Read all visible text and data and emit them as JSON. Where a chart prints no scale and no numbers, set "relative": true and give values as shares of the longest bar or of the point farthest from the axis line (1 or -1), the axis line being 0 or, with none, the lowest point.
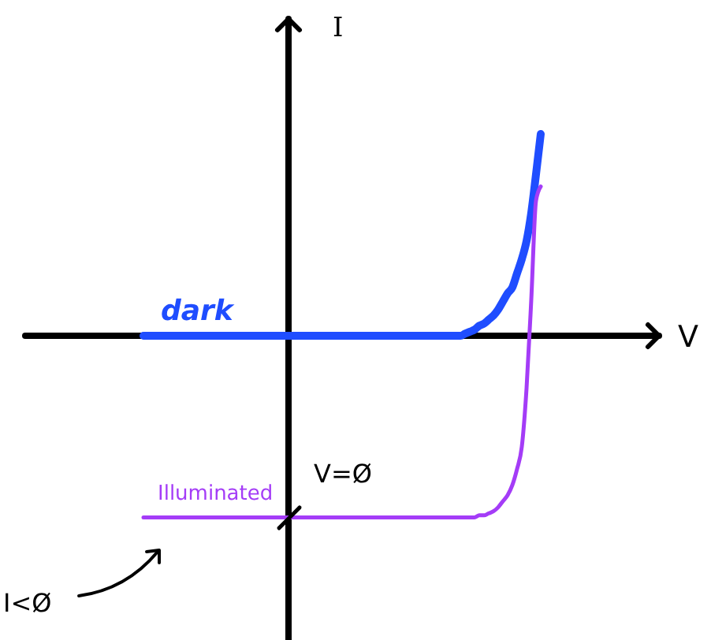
{
  "chart_data": {
    "type": "line",
    "relative": true,
    "xlabel": "V",
    "ylabel": "I",
    "line_style": "solid",
    "categories": [
      null,
      null,
      null,
      null,
      null,
      null,
      null,
      null,
      null,
      null,
      null,
      null,
      null,
      null,
      null,
      null,
      null,
      null,
      null,
      null,
      null,
      null,
      null,
      null,
      null,
      null,
      null,
      null,
      null,
      null,
      null,
      null,
      null,
      null,
      null,
      null,
      null,
      null,
      null,
      null,
      null,
      null,
      null,
      null,
      null,
      null,
      null,
      null,
      null,
      null,
      null,
      null,
      null,
      null,
      null,
      null,
      null,
      null,
      null,
      null,
      null,
      null,
      null,
      null,
      null,
      null,
      null,
      null,
      null,
      null,
      null,
      null,
      null,
      null,
      null,
      null,
      null,
      null,
      null,
      null,
      null,
      null,
      null,
      null,
      null
    ],
    "series": [
      {
        "name": "dark",
        "color": "#1f4dff",
        "values": [
          0,
          0,
          0,
          0,
          0,
          0,
          0,
          0,
          0,
          0,
          0,
          0,
          0,
          0,
          0,
          0,
          0,
          0,
          0,
          0,
          0,
          0,
          0,
          0,
          0,
          0,
          0,
          0,
          0,
          0,
          0,
          0,
          0,
          0,
          0,
          0,
          0,
          0,
          0,
          0,
          0,
          0,
          0,
          0,
          0,
          0,
          0,
          0,
          0,
          0,
          0,
          0,
          0,
          0,
          0,
          0,
          0,
          0,
          0,
          0,
          0,
          0,
          0,
          0,
          0,
          0,
          0,
          0,
          0.01,
          0.02,
          0.03,
          0.05,
          0.06,
          0.08,
          0.1,
          0.13,
          0.17,
          0.21,
          0.24,
          0.31,
          0.38,
          0.47,
          0.61,
          0.8,
          1.0
        ]
      },
      {
        "name": "Illuminated",
        "color": "#a43cf7",
        "values": [
          -0.9,
          -0.9,
          -0.9,
          -0.9,
          -0.9,
          -0.9,
          -0.9,
          -0.9,
          -0.9,
          -0.9,
          -0.9,
          -0.9,
          -0.9,
          -0.9,
          -0.9,
          -0.9,
          -0.9,
          -0.9,
          -0.9,
          -0.9,
          -0.9,
          -0.9,
          -0.9,
          -0.9,
          -0.9,
          -0.9,
          -0.9,
          -0.9,
          -0.9,
          -0.9,
          -0.9,
          -0.9,
          -0.9,
          -0.9,
          -0.9,
          -0.9,
          -0.9,
          -0.9,
          -0.9,
          -0.9,
          -0.9,
          -0.9,
          -0.9,
          -0.9,
          -0.9,
          -0.9,
          -0.9,
          -0.9,
          -0.9,
          -0.9,
          -0.9,
          -0.9,
          -0.9,
          -0.9,
          -0.9,
          -0.9,
          -0.9,
          -0.9,
          -0.9,
          -0.9,
          -0.9,
          -0.9,
          -0.9,
          -0.9,
          -0.9,
          -0.9,
          -0.9,
          -0.9,
          -0.9,
          -0.9,
          -0.9,
          -0.89,
          -0.89,
          -0.88,
          -0.87,
          -0.85,
          -0.82,
          -0.79,
          -0.74,
          -0.66,
          -0.55,
          -0.26,
          0.18,
          0.67,
          0.74
        ]
      }
    ],
    "annotations": [
      "V=Ø",
      "I<Ø"
    ]
  }
}
